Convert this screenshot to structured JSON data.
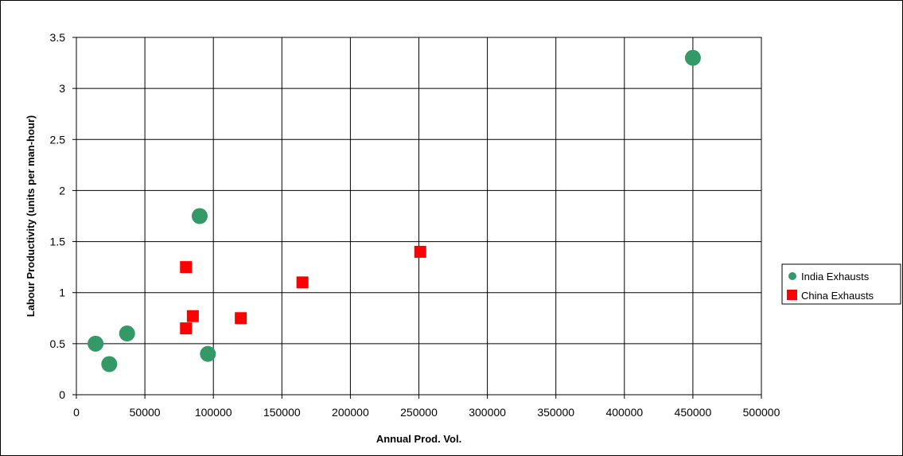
{
  "chart_data": {
    "type": "scatter",
    "title": "",
    "xlabel": "Annual Prod. Vol.",
    "ylabel": "Labour Productivity (units per man-hour)",
    "xlim": [
      0,
      500000
    ],
    "ylim": [
      0,
      3.5
    ],
    "x_ticks": [
      "0",
      "50000",
      "100000",
      "150000",
      "200000",
      "250000",
      "300000",
      "350000",
      "400000",
      "450000",
      "500000"
    ],
    "y_ticks": [
      "0",
      "0.5",
      "1",
      "1.5",
      "2",
      "2.5",
      "3",
      "3.5"
    ],
    "grid": true,
    "legend_position": "right",
    "series": [
      {
        "name": "India Exhausts",
        "marker": "circle",
        "color": "#339966",
        "points": [
          {
            "x": 14000,
            "y": 0.5
          },
          {
            "x": 24000,
            "y": 0.3
          },
          {
            "x": 37000,
            "y": 0.6
          },
          {
            "x": 90000,
            "y": 1.75
          },
          {
            "x": 96000,
            "y": 0.4
          },
          {
            "x": 450000,
            "y": 3.3
          }
        ]
      },
      {
        "name": "China Exhausts",
        "marker": "square",
        "color": "#ff0000",
        "points": [
          {
            "x": 80000,
            "y": 1.25
          },
          {
            "x": 80000,
            "y": 0.65
          },
          {
            "x": 85000,
            "y": 0.77
          },
          {
            "x": 120000,
            "y": 0.75
          },
          {
            "x": 165000,
            "y": 1.1
          },
          {
            "x": 251000,
            "y": 1.4
          }
        ]
      }
    ]
  }
}
